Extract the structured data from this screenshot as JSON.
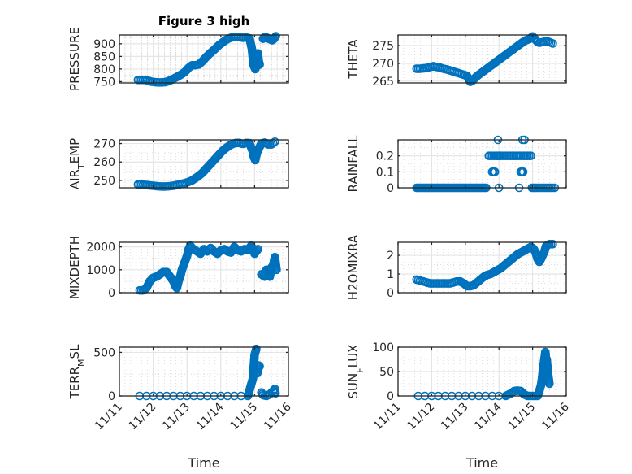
{
  "figure": {
    "title": "Figure 3 high",
    "marker_color": "#0072BD",
    "axis_color": "#262626",
    "grid_color": "#e5e5e5",
    "minor_grid_color": "#c8c8c8"
  },
  "chart_data": [
    {
      "type": "scatter",
      "id": "pressure",
      "title": "Figure 3 high",
      "ylabel": "PRESSURE",
      "ylabel_sub": "",
      "xlabel": "",
      "xlim": [
        0,
        5
      ],
      "ylim": [
        745,
        935
      ],
      "yticks": [
        750,
        800,
        850,
        900
      ],
      "ytick_labels": [
        "750",
        "800",
        "850",
        "900"
      ],
      "xticks": [
        0,
        1,
        2,
        3,
        4,
        5
      ],
      "xtick_labels": [
        "11/11",
        "11/12",
        "11/13",
        "11/14",
        "11/15",
        "11/16"
      ],
      "show_xtick_labels": false,
      "grid": true,
      "minor_grid": "x-dense",
      "series": [
        {
          "name": "PRESSURE",
          "x": [
            0.55,
            0.65,
            0.75,
            0.85,
            0.95,
            1.05,
            1.15,
            1.25,
            1.35,
            1.45,
            1.55,
            1.65,
            1.75,
            1.85,
            1.95,
            2.05,
            2.15,
            2.25,
            2.35,
            2.45,
            2.55,
            2.65,
            2.75,
            2.85,
            2.95,
            3.05,
            3.15,
            3.25,
            3.35,
            3.45,
            3.55,
            3.65,
            3.75,
            3.85,
            3.92,
            3.97,
            4.02,
            4.05,
            4.08,
            4.1,
            4.12,
            4.15,
            4.25,
            4.3,
            4.35,
            4.45,
            4.52,
            4.58,
            4.63
          ],
          "y": [
            757,
            757,
            757,
            754,
            750,
            748,
            747,
            747,
            748,
            752,
            758,
            765,
            772,
            780,
            790,
            805,
            815,
            815,
            818,
            830,
            845,
            858,
            870,
            882,
            895,
            905,
            915,
            922,
            926,
            926,
            926,
            924,
            925,
            922,
            880,
            815,
            800,
            808,
            835,
            862,
            832,
            818,
            920,
            927,
            925,
            918,
            914,
            920,
            930
          ]
        }
      ]
    },
    {
      "type": "scatter",
      "id": "theta",
      "ylabel": "THETA",
      "ylabel_sub": "",
      "xlabel": "",
      "xlim": [
        0,
        5
      ],
      "ylim": [
        264.5,
        278
      ],
      "yticks": [
        265,
        270,
        275
      ],
      "ytick_labels": [
        "265",
        "270",
        "275"
      ],
      "xticks": [
        0,
        1,
        2,
        3,
        4,
        5
      ],
      "xtick_labels": [
        "11/11",
        "11/12",
        "11/13",
        "11/14",
        "11/15",
        "11/16"
      ],
      "show_xtick_labels": false,
      "grid": true,
      "minor_grid": "dotted",
      "series": [
        {
          "name": "THETA",
          "x": [
            0.55,
            0.65,
            0.75,
            0.85,
            0.95,
            1.05,
            1.15,
            1.25,
            1.35,
            1.45,
            1.55,
            1.65,
            1.75,
            1.85,
            1.95,
            2.05,
            2.15,
            2.22,
            2.3,
            2.4,
            2.5,
            2.6,
            2.7,
            2.8,
            2.9,
            3.0,
            3.1,
            3.2,
            3.3,
            3.4,
            3.5,
            3.6,
            3.7,
            3.8,
            3.9,
            4.0,
            4.05,
            4.1,
            4.15,
            4.2,
            4.3,
            4.4,
            4.45,
            4.5,
            4.55,
            4.6
          ],
          "y": [
            268.5,
            268.5,
            268.6,
            268.7,
            269,
            269.2,
            269,
            268.8,
            268.5,
            268.3,
            268,
            267.7,
            267.4,
            267.1,
            266.8,
            266.5,
            264.8,
            265.2,
            266,
            266.8,
            267.5,
            268.2,
            268.9,
            269.6,
            270.3,
            271,
            271.7,
            272.4,
            273.1,
            273.8,
            274.5,
            275.2,
            275.9,
            276.5,
            276.8,
            277.6,
            277.2,
            276.5,
            276,
            275.8,
            276,
            276.3,
            276.2,
            276,
            275.8,
            275.6
          ]
        }
      ]
    },
    {
      "type": "scatter",
      "id": "air_temp",
      "ylabel": "AIR",
      "ylabel_sub": "T",
      "ylabel_suffix": "EMP",
      "xlabel": "",
      "xlim": [
        0,
        5
      ],
      "ylim": [
        246,
        272
      ],
      "yticks": [
        250,
        260,
        270
      ],
      "ytick_labels": [
        "250",
        "260",
        "270"
      ],
      "xticks": [
        0,
        1,
        2,
        3,
        4,
        5
      ],
      "xtick_labels": [
        "11/11",
        "11/12",
        "11/13",
        "11/14",
        "11/15",
        "11/16"
      ],
      "show_xtick_labels": false,
      "grid": true,
      "minor_grid": "dotted",
      "series": [
        {
          "name": "AIR_TEMP",
          "x": [
            0.55,
            0.65,
            0.75,
            0.85,
            0.95,
            1.05,
            1.15,
            1.25,
            1.35,
            1.45,
            1.55,
            1.65,
            1.75,
            1.85,
            1.95,
            2.05,
            2.15,
            2.25,
            2.35,
            2.45,
            2.55,
            2.65,
            2.75,
            2.85,
            2.95,
            3.05,
            3.15,
            3.25,
            3.35,
            3.45,
            3.55,
            3.65,
            3.75,
            3.85,
            3.95,
            3.98,
            4.02,
            4.05,
            4.08,
            4.2,
            4.3,
            4.4,
            4.5,
            4.55,
            4.6
          ],
          "y": [
            247.8,
            247.8,
            247.6,
            247.4,
            247.2,
            247.0,
            246.8,
            246.7,
            246.7,
            246.8,
            247.0,
            247.3,
            247.7,
            248.1,
            248.6,
            249.2,
            250.0,
            251.2,
            252.5,
            254.0,
            256.0,
            258.0,
            260.0,
            262.0,
            264.0,
            266.0,
            267.5,
            268.8,
            269.8,
            270.3,
            270.3,
            269.8,
            270.3,
            270.2,
            265.5,
            262.5,
            261.0,
            263.5,
            265.5,
            270.0,
            270.5,
            269.5,
            269.5,
            270.2,
            271.0
          ]
        }
      ]
    },
    {
      "type": "scatter",
      "id": "rainfall",
      "ylabel": "RAINFALL",
      "ylabel_sub": "",
      "xlabel": "",
      "xlim": [
        0,
        5
      ],
      "ylim": [
        0,
        0.3
      ],
      "yticks": [
        0,
        0.1,
        0.2
      ],
      "ytick_labels": [
        "0",
        "0.1",
        "0.2"
      ],
      "xticks": [
        0,
        1,
        2,
        3,
        4,
        5
      ],
      "xtick_labels": [
        "11/11",
        "11/12",
        "11/13",
        "11/14",
        "11/15",
        "11/16"
      ],
      "show_xtick_labels": false,
      "grid": true,
      "minor_grid": "dotted",
      "series": [
        {
          "name": "RAINFALL",
          "x": [
            0.55,
            0.7,
            0.85,
            1.0,
            1.15,
            1.3,
            1.45,
            1.6,
            1.75,
            1.9,
            2.05,
            2.2,
            2.35,
            2.5,
            2.62,
            2.7,
            2.8,
            2.9,
            3.05,
            3.15,
            3.25,
            3.35,
            3.45,
            3.55,
            3.65,
            3.72,
            3.85,
            3.9,
            3.95,
            2.8,
            2.88,
            3.65,
            3.68,
            3.72,
            3.0,
            3.6,
            2.97,
            3.7,
            3.76,
            3.98,
            4.1,
            4.2,
            4.3,
            4.4,
            4.5,
            4.6,
            4.66
          ],
          "y": [
            0,
            0,
            0,
            0,
            0,
            0,
            0,
            0,
            0,
            0,
            0,
            0,
            0,
            0,
            0,
            0.2,
            0.2,
            0.2,
            0.2,
            0.2,
            0.2,
            0.2,
            0.2,
            0.2,
            0.2,
            0.2,
            0.2,
            0.2,
            0.2,
            0.1,
            0.1,
            0.1,
            0.1,
            0.1,
            0,
            0,
            0.3,
            0.3,
            0.3,
            0,
            0,
            0,
            0,
            0,
            0,
            0,
            0
          ]
        }
      ]
    },
    {
      "type": "scatter",
      "id": "mixdepth",
      "ylabel": "MIXDEPTH",
      "ylabel_sub": "",
      "xlabel": "",
      "xlim": [
        0,
        5
      ],
      "ylim": [
        0,
        2200
      ],
      "yticks": [
        0,
        1000,
        2000
      ],
      "ytick_labels": [
        "0",
        "1000",
        "2000"
      ],
      "xticks": [
        0,
        1,
        2,
        3,
        4,
        5
      ],
      "xtick_labels": [
        "11/11",
        "11/12",
        "11/13",
        "11/14",
        "11/15",
        "11/16"
      ],
      "show_xtick_labels": false,
      "grid": true,
      "minor_grid": "dotted",
      "series": [
        {
          "name": "MIXDEPTH",
          "x": [
            0.6,
            0.7,
            0.8,
            0.9,
            1.0,
            1.1,
            1.2,
            1.3,
            1.4,
            1.5,
            1.6,
            1.65,
            1.7,
            1.75,
            1.8,
            1.85,
            1.9,
            1.95,
            2.0,
            2.05,
            2.1,
            2.15,
            2.2,
            2.25,
            2.3,
            2.4,
            2.5,
            2.6,
            2.7,
            2.8,
            2.9,
            3.0,
            3.1,
            3.2,
            3.3,
            3.4,
            3.5,
            3.6,
            3.7,
            3.8,
            3.9,
            3.95,
            4.0,
            4.05,
            4.1,
            4.2,
            4.3,
            4.35,
            4.4,
            4.45,
            4.5,
            4.55,
            4.6,
            4.65
          ],
          "y": [
            100,
            100,
            200,
            500,
            650,
            700,
            800,
            900,
            900,
            700,
            500,
            300,
            200,
            500,
            700,
            1000,
            1200,
            1400,
            1600,
            1900,
            2050,
            1950,
            1900,
            1850,
            1800,
            1700,
            1900,
            1800,
            1950,
            1800,
            1700,
            1850,
            1900,
            1800,
            1750,
            2000,
            1850,
            1800,
            1900,
            1850,
            2050,
            1900,
            1700,
            1800,
            1900,
            800,
            700,
            1000,
            900,
            700,
            1100,
            1200,
            1550,
            1000
          ]
        }
      ]
    },
    {
      "type": "scatter",
      "id": "h2omixra",
      "ylabel": "H2OMIXRA",
      "ylabel_sub": "",
      "xlabel": "",
      "xlim": [
        0,
        5
      ],
      "ylim": [
        0,
        2.7
      ],
      "yticks": [
        0,
        1,
        2
      ],
      "ytick_labels": [
        "0",
        "1",
        "2"
      ],
      "xticks": [
        0,
        1,
        2,
        3,
        4,
        5
      ],
      "xtick_labels": [
        "11/11",
        "11/12",
        "11/13",
        "11/14",
        "11/15",
        "11/16"
      ],
      "show_xtick_labels": false,
      "grid": true,
      "minor_grid": "dotted",
      "series": [
        {
          "name": "H2OMIXRA",
          "x": [
            0.55,
            0.65,
            0.75,
            0.85,
            0.95,
            1.05,
            1.15,
            1.25,
            1.35,
            1.45,
            1.55,
            1.65,
            1.75,
            1.85,
            1.95,
            2.05,
            2.15,
            2.25,
            2.35,
            2.45,
            2.55,
            2.65,
            2.75,
            2.85,
            2.95,
            3.05,
            3.15,
            3.25,
            3.35,
            3.45,
            3.55,
            3.65,
            3.75,
            3.85,
            3.95,
            4.0,
            4.05,
            4.1,
            4.15,
            4.2,
            4.25,
            4.3,
            4.35,
            4.4,
            4.5,
            4.6
          ],
          "y": [
            0.7,
            0.65,
            0.6,
            0.55,
            0.5,
            0.5,
            0.5,
            0.5,
            0.5,
            0.5,
            0.5,
            0.55,
            0.6,
            0.6,
            0.5,
            0.35,
            0.35,
            0.4,
            0.55,
            0.7,
            0.85,
            0.95,
            1.0,
            1.1,
            1.2,
            1.3,
            1.45,
            1.6,
            1.75,
            1.9,
            2.05,
            2.15,
            2.25,
            2.35,
            2.45,
            2.4,
            2.3,
            2.1,
            1.8,
            1.65,
            1.8,
            2.0,
            2.2,
            2.5,
            2.6,
            2.6
          ]
        }
      ]
    },
    {
      "type": "scatter",
      "id": "terr_msl",
      "ylabel": "TERR",
      "ylabel_sub": "M",
      "ylabel_suffix": "SL",
      "xlabel": "Time",
      "xlim": [
        0,
        5
      ],
      "ylim": [
        0,
        560
      ],
      "yticks": [
        0,
        500
      ],
      "ytick_labels": [
        "0",
        "500"
      ],
      "xticks": [
        0,
        1,
        2,
        3,
        4,
        5
      ],
      "xtick_labels": [
        "11/11",
        "11/12",
        "11/13",
        "11/14",
        "11/15",
        "11/16"
      ],
      "show_xtick_labels": true,
      "grid": true,
      "minor_grid": "dotted",
      "series": [
        {
          "name": "TERR_MSL",
          "x": [
            0.6,
            0.8,
            1.0,
            1.2,
            1.4,
            1.6,
            1.8,
            2.0,
            2.2,
            2.4,
            2.6,
            2.8,
            3.0,
            3.2,
            3.4,
            3.6,
            3.8,
            3.95,
            4.0,
            4.05,
            4.08,
            4.1,
            4.12,
            4.15,
            4.2,
            4.25,
            4.35,
            4.45,
            4.5,
            4.55,
            4.6,
            4.62
          ],
          "y": [
            0,
            0,
            0,
            0,
            0,
            0,
            0,
            0,
            0,
            0,
            0,
            0,
            0,
            0,
            0,
            0,
            0,
            200,
            470,
            540,
            260,
            340,
            350,
            340,
            40,
            10,
            0,
            20,
            40,
            60,
            80,
            30
          ]
        }
      ]
    },
    {
      "type": "scatter",
      "id": "sun_flux",
      "ylabel": "SUN",
      "ylabel_sub": "F",
      "ylabel_suffix": "LUX",
      "xlabel": "Time",
      "xlim": [
        0,
        5
      ],
      "ylim": [
        0,
        100
      ],
      "yticks": [
        0,
        50,
        100
      ],
      "ytick_labels": [
        "0",
        "50",
        "100"
      ],
      "xticks": [
        0,
        1,
        2,
        3,
        4,
        5
      ],
      "xtick_labels": [
        "11/11",
        "11/12",
        "11/13",
        "11/14",
        "11/15",
        "11/16"
      ],
      "show_xtick_labels": true,
      "grid": true,
      "minor_grid": "dotted",
      "series": [
        {
          "name": "SUN_FLUX",
          "x": [
            0.6,
            0.8,
            1.0,
            1.2,
            1.4,
            1.6,
            1.8,
            2.0,
            2.2,
            2.4,
            2.6,
            2.8,
            3.0,
            3.2,
            3.35,
            3.45,
            3.55,
            3.65,
            3.75,
            3.85,
            3.95,
            4.05,
            4.15,
            4.2,
            4.25,
            4.28,
            4.32,
            4.35,
            4.38,
            4.4,
            4.42,
            4.45,
            4.5
          ],
          "y": [
            0,
            0,
            0,
            0,
            0,
            0,
            0,
            0,
            0,
            0,
            0,
            0,
            0,
            0,
            5,
            10,
            11,
            10,
            3,
            0,
            0,
            0,
            0,
            10,
            22,
            35,
            60,
            75,
            90,
            72,
            75,
            50,
            25
          ]
        }
      ]
    }
  ]
}
